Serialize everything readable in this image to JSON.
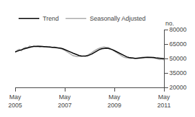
{
  "chart_data": {
    "type": "line",
    "categories": [
      "May\n2005",
      null,
      null,
      null,
      null,
      null,
      null,
      null,
      null,
      null,
      null,
      null,
      null,
      null,
      null,
      null,
      null,
      null,
      null,
      null,
      null,
      null,
      null,
      null,
      "May\n2007",
      null,
      null,
      null,
      null,
      null,
      null,
      null,
      null,
      null,
      null,
      null,
      null,
      null,
      null,
      null,
      null,
      null,
      null,
      null,
      null,
      null,
      null,
      null,
      "May\n2009",
      null,
      null,
      null,
      null,
      null,
      null,
      null,
      null,
      null,
      null,
      null,
      null,
      null,
      null,
      null,
      null,
      null,
      null,
      null,
      null,
      null,
      null,
      null,
      "May\n2011"
    ],
    "series": [
      {
        "name": "Trend",
        "color": "#000000",
        "values": [
          57000,
          57500,
          58200,
          59000,
          59800,
          60500,
          61200,
          61800,
          62200,
          62500,
          62700,
          62800,
          62700,
          62500,
          62200,
          62000,
          61800,
          61700,
          61600,
          61500,
          61400,
          61200,
          60800,
          60200,
          59400,
          58500,
          57500,
          56500,
          55500,
          54500,
          53600,
          53000,
          52600,
          52400,
          52500,
          52800,
          53500,
          54500,
          55800,
          57200,
          58500,
          59500,
          60200,
          60600,
          60700,
          60500,
          60000,
          59200,
          58200,
          57100,
          55900,
          54700,
          53600,
          52600,
          51700,
          51100,
          50600,
          50300,
          50100,
          50100,
          50200,
          50400,
          50700,
          51000,
          51200,
          51300,
          51200,
          51000,
          50700,
          50400,
          50100,
          49900,
          49800
        ]
      },
      {
        "name": "Seasonally Adjusted",
        "color": "#aaaaaa",
        "values": [
          56000,
          58500,
          59500,
          58000,
          60500,
          61500,
          61000,
          63000,
          62000,
          63000,
          62500,
          63000,
          62000,
          62500,
          62000,
          62500,
          62000,
          62500,
          61500,
          62000,
          61500,
          61000,
          60500,
          59500,
          58500,
          57000,
          55500,
          54500,
          53000,
          52500,
          52000,
          52500,
          52000,
          52500,
          52500,
          53500,
          54500,
          56000,
          57500,
          59000,
          60000,
          61000,
          61500,
          62000,
          61500,
          61500,
          60500,
          59000,
          57500,
          56000,
          54500,
          53000,
          52000,
          51000,
          50500,
          50500,
          50000,
          50500,
          50000,
          50500,
          50500,
          51000,
          51500,
          51500,
          51500,
          51500,
          51000,
          50500,
          50000,
          49500,
          49000,
          49500,
          48500
        ]
      }
    ],
    "ylabel": "no.",
    "ylim": [
      20000,
      80000
    ],
    "yticks": [
      20000,
      35000,
      50000,
      65000,
      80000
    ],
    "grid": false,
    "legend": "upper left"
  }
}
